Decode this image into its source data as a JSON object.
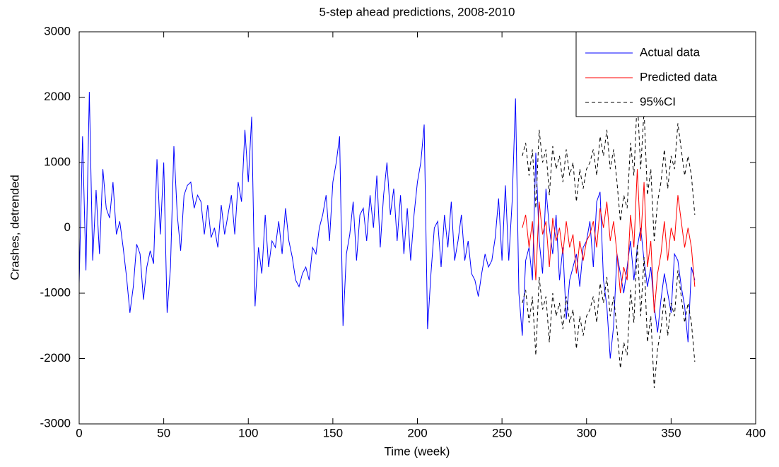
{
  "chart_data": {
    "type": "line",
    "title": "5-step ahead predictions, 2008-2010",
    "x_label": "Time (week)",
    "y_label": "Crashes, detrended",
    "xlim": [
      0,
      400
    ],
    "xticks": [
      0,
      50,
      100,
      150,
      200,
      250,
      300,
      350,
      400
    ],
    "ylim": [
      -3000,
      3000
    ],
    "yticks": [
      -3000,
      -2000,
      -1000,
      0,
      1000,
      2000,
      3000
    ],
    "grid": false,
    "legend": "upper right",
    "series": [
      {
        "name": "Actual data",
        "color": "#0000ff",
        "dash": false,
        "x": [
          0,
          2,
          4,
          6,
          8,
          10,
          12,
          14,
          16,
          18,
          20,
          22,
          24,
          26,
          28,
          30,
          32,
          34,
          36,
          38,
          40,
          42,
          44,
          46,
          48,
          50,
          52,
          54,
          56,
          58,
          60,
          62,
          64,
          66,
          68,
          70,
          72,
          74,
          76,
          78,
          80,
          82,
          84,
          86,
          88,
          90,
          92,
          94,
          96,
          98,
          100,
          102,
          104,
          106,
          108,
          110,
          112,
          114,
          116,
          118,
          120,
          122,
          124,
          126,
          128,
          130,
          132,
          134,
          136,
          138,
          140,
          142,
          144,
          146,
          148,
          150,
          152,
          154,
          156,
          158,
          160,
          162,
          164,
          166,
          168,
          170,
          172,
          174,
          176,
          178,
          180,
          182,
          184,
          186,
          188,
          190,
          192,
          194,
          196,
          198,
          200,
          202,
          204,
          206,
          208,
          210,
          212,
          214,
          216,
          218,
          220,
          222,
          224,
          226,
          228,
          230,
          232,
          234,
          236,
          238,
          240,
          242,
          244,
          246,
          248,
          250,
          252,
          254,
          256,
          258,
          260,
          262,
          264,
          266,
          268,
          270,
          272,
          274,
          276,
          278,
          280,
          282,
          284,
          286,
          288,
          290,
          292,
          294,
          296,
          298,
          300,
          302,
          304,
          306,
          308,
          310,
          312,
          314,
          316,
          318,
          320,
          322,
          324,
          326,
          328,
          330,
          332,
          334,
          336,
          338,
          340,
          342,
          344,
          346,
          348,
          350,
          352,
          354,
          356,
          358,
          360,
          362,
          364
        ],
        "values": [
          -850,
          1400,
          -650,
          2080,
          -500,
          580,
          -400,
          900,
          300,
          150,
          700,
          -100,
          100,
          -300,
          -750,
          -1300,
          -900,
          -250,
          -400,
          -1100,
          -600,
          -350,
          -550,
          1050,
          -100,
          1000,
          -1300,
          -600,
          1250,
          200,
          -350,
          500,
          650,
          700,
          300,
          500,
          400,
          -100,
          350,
          -150,
          0,
          -300,
          350,
          -100,
          200,
          500,
          -100,
          700,
          400,
          1500,
          700,
          1700,
          -1200,
          -300,
          -700,
          200,
          -600,
          -200,
          -300,
          100,
          -400,
          300,
          -200,
          -450,
          -800,
          -900,
          -700,
          -600,
          -800,
          -300,
          -400,
          0,
          200,
          500,
          -200,
          700,
          1000,
          1400,
          -1500,
          -400,
          -100,
          400,
          -500,
          200,
          300,
          -200,
          500,
          0,
          800,
          -300,
          500,
          1000,
          200,
          600,
          -200,
          500,
          -400,
          300,
          -500,
          200,
          700,
          1000,
          1580,
          -1550,
          -700,
          0,
          100,
          -600,
          200,
          -300,
          400,
          -500,
          -200,
          200,
          -500,
          -200,
          -700,
          -800,
          -1050,
          -700,
          -400,
          -600,
          -500,
          -150,
          450,
          -500,
          650,
          -500,
          400,
          1980,
          -1000,
          -1650,
          -500,
          -300,
          -800,
          1150,
          -200,
          -700,
          600,
          0,
          -400,
          200,
          -800,
          -300,
          -1400,
          -800,
          -600,
          -400,
          -900,
          -300,
          -200,
          100,
          -600,
          400,
          550,
          -800,
          -1200,
          -2000,
          -1500,
          -400,
          -700,
          -1000,
          -600,
          -200,
          -800,
          -300,
          0,
          -500,
          -900,
          -600,
          -1200,
          -1600,
          -1100,
          -700,
          -1000,
          -1300,
          -400,
          -500,
          -900,
          -1200,
          -1750,
          -600,
          -800
        ]
      },
      {
        "name": "Predicted data",
        "color": "#ff0000",
        "dash": false,
        "x": [
          262,
          264,
          266,
          268,
          270,
          272,
          274,
          276,
          278,
          280,
          282,
          284,
          286,
          288,
          290,
          292,
          294,
          296,
          298,
          300,
          302,
          304,
          306,
          308,
          310,
          312,
          314,
          316,
          318,
          320,
          322,
          324,
          326,
          328,
          330,
          332,
          334,
          336,
          338,
          340,
          342,
          344,
          346,
          348,
          350,
          352,
          354,
          356,
          358,
          360,
          362,
          364
        ],
        "values": [
          0,
          200,
          -300,
          100,
          -800,
          400,
          -100,
          100,
          -600,
          150,
          -200,
          0,
          -400,
          100,
          -300,
          -100,
          -700,
          -200,
          -500,
          -200,
          -100,
          100,
          -300,
          300,
          0,
          400,
          -200,
          100,
          -400,
          -1000,
          -600,
          -800,
          200,
          -300,
          900,
          -200,
          700,
          -600,
          -200,
          -1300,
          -700,
          -400,
          100,
          -500,
          0,
          -200,
          500,
          100,
          -300,
          0,
          -300,
          -900
        ]
      },
      {
        "name": "95%CI",
        "color": "#000000",
        "dash": true,
        "x": [
          262,
          264,
          266,
          268,
          270,
          272,
          274,
          276,
          278,
          280,
          282,
          284,
          286,
          288,
          290,
          292,
          294,
          296,
          298,
          300,
          302,
          304,
          306,
          308,
          310,
          312,
          314,
          316,
          318,
          320,
          322,
          324,
          326,
          328,
          330,
          332,
          334,
          336,
          338,
          340,
          342,
          344,
          346,
          348,
          350,
          352,
          354,
          356,
          358,
          360,
          362,
          364
        ],
        "upper": [
          1100,
          1300,
          800,
          1200,
          300,
          1500,
          1000,
          1200,
          500,
          1250,
          900,
          1100,
          700,
          1200,
          800,
          1000,
          400,
          900,
          600,
          900,
          1000,
          1200,
          800,
          1400,
          1100,
          1500,
          900,
          1200,
          700,
          100,
          500,
          300,
          1300,
          800,
          2000,
          900,
          1800,
          500,
          900,
          -200,
          400,
          700,
          1200,
          600,
          1100,
          900,
          1600,
          1200,
          800,
          1100,
          800,
          200
        ],
        "lower": [
          -1150,
          -950,
          -1450,
          -1050,
          -1950,
          -750,
          -1250,
          -1050,
          -1750,
          -1000,
          -1350,
          -1150,
          -1550,
          -1050,
          -1450,
          -1250,
          -1850,
          -1350,
          -1650,
          -1350,
          -1250,
          -1050,
          -1450,
          -850,
          -1150,
          -750,
          -1350,
          -1050,
          -1550,
          -2150,
          -1750,
          -1950,
          -950,
          -1450,
          -250,
          -1350,
          -450,
          -1750,
          -1350,
          -2450,
          -1850,
          -1550,
          -1050,
          -1650,
          -1150,
          -1350,
          -650,
          -1050,
          -1450,
          -1150,
          -1450,
          -2050
        ]
      }
    ]
  }
}
